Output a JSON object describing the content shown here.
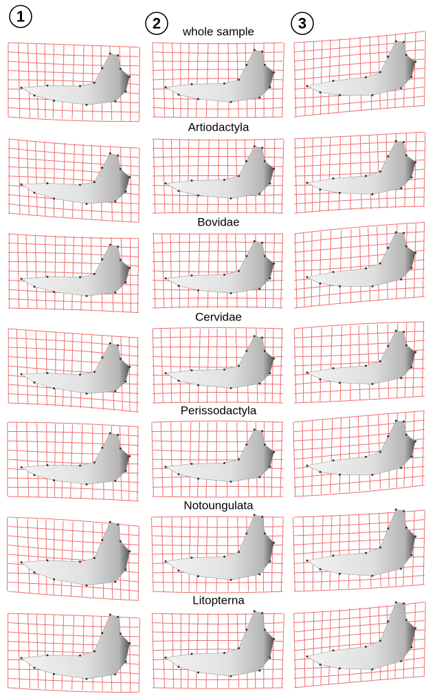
{
  "columns": [
    "1",
    "2",
    "3"
  ],
  "groups": [
    "whole sample",
    "Artiodactyla",
    "Bovidae",
    "Cervidae",
    "Perissodactyla",
    "Notoungulata",
    "Litopterna"
  ]
}
